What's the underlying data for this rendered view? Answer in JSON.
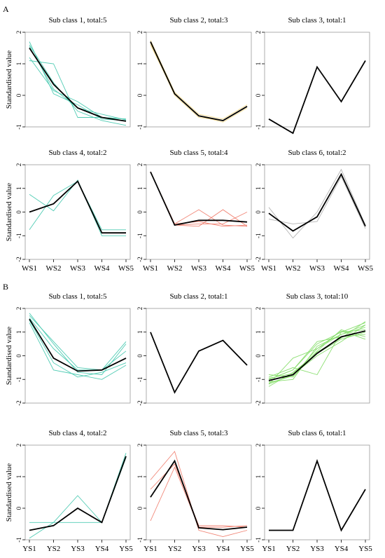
{
  "figure": {
    "panel_labels": [
      "A",
      "B"
    ]
  },
  "chart_data": [
    {
      "type": "line",
      "panel": "A",
      "title": "Sub class 1, total:5",
      "ylabel": "Standardised value",
      "xlabel": "",
      "categories": [
        "WS1",
        "WS2",
        "WS3",
        "WS4",
        "WS5"
      ],
      "show_xticks": false,
      "ylim": [
        -1,
        2
      ],
      "yticks": [
        -1,
        0,
        1,
        2
      ],
      "member_color": "#48c9b0",
      "series": [
        {
          "values": [
            1.7,
            0.05,
            -0.3,
            -0.75,
            -0.8
          ]
        },
        {
          "values": [
            1.55,
            0.2,
            -0.4,
            -0.6,
            -0.78
          ]
        },
        {
          "values": [
            1.2,
            0.15,
            -0.2,
            -0.7,
            -0.75
          ]
        },
        {
          "values": [
            1.1,
            1.0,
            -0.7,
            -0.7,
            -0.75
          ]
        },
        {
          "values": [
            1.6,
            0.4,
            -0.5,
            -0.8,
            -0.95
          ]
        }
      ],
      "mean": [
        1.5,
        0.35,
        -0.4,
        -0.7,
        -0.82
      ]
    },
    {
      "type": "line",
      "panel": "A",
      "title": "Sub class 2, total:3",
      "ylabel": "",
      "xlabel": "",
      "categories": [
        "WS1",
        "WS2",
        "WS3",
        "WS4",
        "WS5"
      ],
      "show_xticks": false,
      "ylim": [
        -1,
        2
      ],
      "yticks": [
        -1,
        0,
        1,
        2
      ],
      "member_color": "#f5d98a",
      "series": [
        {
          "values": [
            1.65,
            0.0,
            -0.7,
            -0.8,
            -0.35
          ]
        },
        {
          "values": [
            1.75,
            0.1,
            -0.6,
            -0.75,
            -0.3
          ]
        },
        {
          "values": [
            1.6,
            0.05,
            -0.65,
            -0.85,
            -0.4
          ]
        }
      ],
      "mean": [
        1.7,
        0.05,
        -0.65,
        -0.8,
        -0.35
      ]
    },
    {
      "type": "line",
      "panel": "A",
      "title": "Sub class 3, total:1",
      "ylabel": "",
      "xlabel": "",
      "categories": [
        "WS1",
        "WS2",
        "WS3",
        "WS4",
        "WS5"
      ],
      "show_xticks": false,
      "ylim": [
        -1,
        2
      ],
      "yticks": [
        -1,
        0,
        1,
        2
      ],
      "member_color": "#000000",
      "series": [],
      "mean": [
        -0.75,
        -1.2,
        0.9,
        -0.2,
        1.1
      ]
    },
    {
      "type": "line",
      "panel": "A",
      "title": "Sub class 4, total:2",
      "ylabel": "Standardised value",
      "xlabel": "",
      "categories": [
        "WS1",
        "WS2",
        "WS3",
        "WS4",
        "WS5"
      ],
      "show_xticks": true,
      "ylim": [
        -2,
        2
      ],
      "yticks": [
        -2,
        -1,
        0,
        1,
        2
      ],
      "member_color": "#48c9b0",
      "series": [
        {
          "values": [
            -0.75,
            0.7,
            1.3,
            -0.75,
            -0.75
          ]
        },
        {
          "values": [
            0.75,
            0.05,
            1.35,
            -1.0,
            -1.0
          ]
        }
      ],
      "mean": [
        0.0,
        0.35,
        1.3,
        -0.88,
        -0.88
      ]
    },
    {
      "type": "line",
      "panel": "A",
      "title": "Sub class 5, total:4",
      "ylabel": "",
      "xlabel": "",
      "categories": [
        "WS1",
        "WS2",
        "WS3",
        "WS4",
        "WS5"
      ],
      "show_xticks": true,
      "ylim": [
        -2,
        2
      ],
      "yticks": [
        -2,
        -1,
        0,
        1,
        2
      ],
      "member_color": "#f08070",
      "series": [
        {
          "values": [
            1.7,
            -0.5,
            0.1,
            -0.55,
            -0.6
          ]
        },
        {
          "values": [
            1.7,
            -0.55,
            -0.6,
            0.1,
            -0.6
          ]
        },
        {
          "values": [
            1.7,
            -0.55,
            -0.5,
            -0.5,
            0.0
          ]
        },
        {
          "values": [
            1.7,
            -0.5,
            -0.4,
            -0.6,
            -0.55
          ]
        }
      ],
      "mean": [
        1.7,
        -0.55,
        -0.35,
        -0.35,
        -0.42
      ]
    },
    {
      "type": "line",
      "panel": "A",
      "title": "Sub class 6, total:2",
      "ylabel": "",
      "xlabel": "",
      "categories": [
        "WS1",
        "WS2",
        "WS3",
        "WS4",
        "WS5"
      ],
      "show_xticks": true,
      "ylim": [
        -2,
        2
      ],
      "yticks": [
        -2,
        -1,
        0,
        1,
        2
      ],
      "member_color": "#b0b0b0",
      "series": [
        {
          "values": [
            0.2,
            -1.1,
            0.0,
            1.8,
            -0.55
          ]
        },
        {
          "values": [
            -0.3,
            -0.5,
            -0.4,
            1.5,
            -0.7
          ]
        }
      ],
      "mean": [
        -0.05,
        -0.8,
        -0.2,
        1.6,
        -0.6
      ]
    },
    {
      "type": "line",
      "panel": "B",
      "title": "Sub class 1, total:5",
      "ylabel": "Standardised value",
      "xlabel": "",
      "categories": [
        "YS1",
        "YS2",
        "YS3",
        "YS4",
        "YS5"
      ],
      "show_xticks": false,
      "ylim": [
        -2,
        2
      ],
      "yticks": [
        -2,
        -1,
        0,
        1,
        2
      ],
      "member_color": "#48c9b0",
      "series": [
        {
          "values": [
            1.8,
            0.5,
            -0.7,
            -0.8,
            0.5
          ]
        },
        {
          "values": [
            1.6,
            0.3,
            -0.6,
            -0.6,
            0.2
          ]
        },
        {
          "values": [
            1.5,
            -0.3,
            -0.9,
            -0.7,
            -0.3
          ]
        },
        {
          "values": [
            1.4,
            -0.6,
            -0.8,
            -1.0,
            -0.4
          ]
        },
        {
          "values": [
            1.7,
            0.6,
            -0.5,
            -0.6,
            0.6
          ]
        }
      ],
      "mean": [
        1.55,
        -0.1,
        -0.65,
        -0.6,
        -0.1
      ]
    },
    {
      "type": "line",
      "panel": "B",
      "title": "Sub class 2, total:1",
      "ylabel": "",
      "xlabel": "",
      "categories": [
        "YS1",
        "YS2",
        "YS3",
        "YS4",
        "YS5"
      ],
      "show_xticks": false,
      "ylim": [
        -2,
        2
      ],
      "yticks": [
        -2,
        -1,
        0,
        1,
        2
      ],
      "member_color": "#000000",
      "series": [],
      "mean": [
        1.0,
        -1.55,
        0.2,
        0.65,
        -0.4
      ]
    },
    {
      "type": "line",
      "panel": "B",
      "title": "Sub class 3, total:10",
      "ylabel": "",
      "xlabel": "",
      "categories": [
        "YS1",
        "YS2",
        "YS3",
        "YS4",
        "YS5"
      ],
      "show_xticks": false,
      "ylim": [
        -2,
        2
      ],
      "yticks": [
        -2,
        -1,
        0,
        1,
        2
      ],
      "member_color": "#86dd6a",
      "series": [
        {
          "values": [
            -1.2,
            -0.1,
            0.3,
            0.9,
            1.3
          ]
        },
        {
          "values": [
            -1.0,
            -0.6,
            0.5,
            1.0,
            1.4
          ]
        },
        {
          "values": [
            -0.8,
            -0.9,
            0.2,
            1.1,
            0.8
          ]
        },
        {
          "values": [
            -1.3,
            -0.7,
            0.1,
            0.7,
            1.0
          ]
        },
        {
          "values": [
            -1.1,
            -1.0,
            0.4,
            0.9,
            1.2
          ]
        },
        {
          "values": [
            -0.9,
            -0.5,
            -0.8,
            1.0,
            1.1
          ]
        },
        {
          "values": [
            -1.2,
            -0.8,
            0.0,
            0.6,
            1.3
          ]
        },
        {
          "values": [
            -1.0,
            -0.6,
            0.6,
            0.8,
            0.9
          ]
        },
        {
          "values": [
            -1.15,
            -0.85,
            0.3,
            1.05,
            0.7
          ]
        },
        {
          "values": [
            -0.95,
            -0.75,
            0.15,
            0.75,
            1.45
          ]
        }
      ],
      "mean": [
        -1.05,
        -0.8,
        0.1,
        0.8,
        1.05
      ]
    },
    {
      "type": "line",
      "panel": "B",
      "title": "Sub class 4, total:2",
      "ylabel": "Standardised value",
      "xlabel": "",
      "categories": [
        "YS1",
        "YS2",
        "YS3",
        "YS4",
        "YS5"
      ],
      "show_xticks": true,
      "ylim": [
        -1,
        2
      ],
      "yticks": [
        -1,
        0,
        1,
        2
      ],
      "member_color": "#48c9b0",
      "series": [
        {
          "values": [
            -0.95,
            -0.45,
            0.4,
            -0.45,
            1.75
          ]
        },
        {
          "values": [
            -0.45,
            -0.45,
            -0.45,
            -0.45,
            1.6
          ]
        }
      ],
      "mean": [
        -0.7,
        -0.55,
        0.0,
        -0.45,
        1.65
      ]
    },
    {
      "type": "line",
      "panel": "B",
      "title": "Sub class 5, total:3",
      "ylabel": "",
      "xlabel": "",
      "categories": [
        "YS1",
        "YS2",
        "YS3",
        "YS4",
        "YS5"
      ],
      "show_xticks": true,
      "ylim": [
        -1,
        2
      ],
      "yticks": [
        -1,
        0,
        1,
        2
      ],
      "member_color": "#f08070",
      "series": [
        {
          "values": [
            0.9,
            1.8,
            -0.7,
            -0.9,
            -0.7
          ]
        },
        {
          "values": [
            -0.4,
            1.3,
            -0.6,
            -0.6,
            -0.55
          ]
        },
        {
          "values": [
            0.6,
            1.4,
            -0.55,
            -0.55,
            -0.6
          ]
        }
      ],
      "mean": [
        0.35,
        1.5,
        -0.62,
        -0.68,
        -0.6
      ]
    },
    {
      "type": "line",
      "panel": "B",
      "title": "Sub class 6, total:1",
      "ylabel": "",
      "xlabel": "",
      "categories": [
        "YS1",
        "YS2",
        "YS3",
        "YS4",
        "YS5"
      ],
      "show_xticks": true,
      "ylim": [
        -1,
        2
      ],
      "yticks": [
        -1,
        0,
        1,
        2
      ],
      "member_color": "#000000",
      "series": [],
      "mean": [
        -0.7,
        -0.7,
        1.5,
        -0.7,
        0.6
      ]
    }
  ]
}
